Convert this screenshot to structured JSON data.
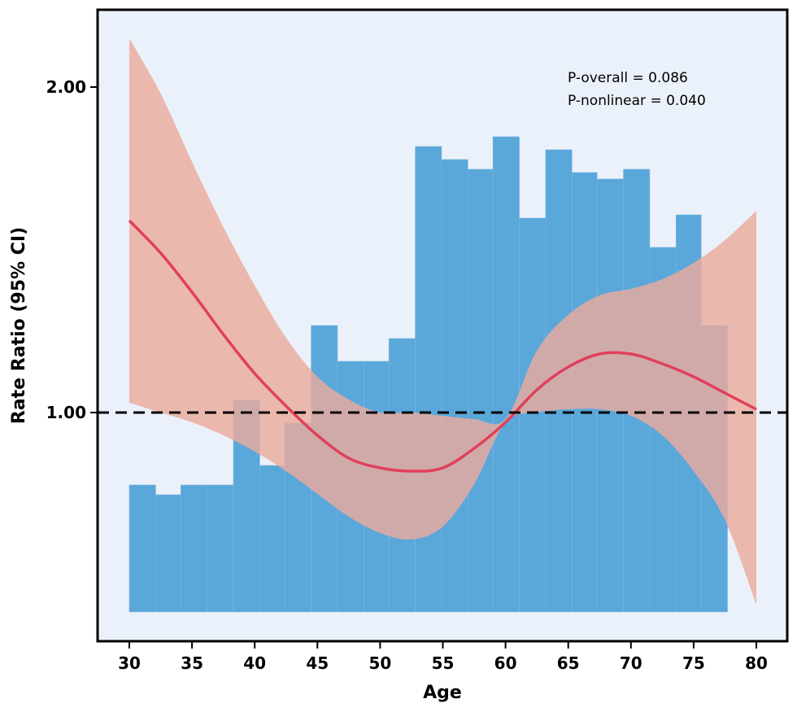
{
  "chart_data": {
    "type": "line",
    "xlabel": "Age",
    "ylabel": "Rate Ratio (95% CI)",
    "xlim": [
      27.5,
      82.5
    ],
    "x_ticks": [
      "30",
      "35",
      "40",
      "45",
      "50",
      "55",
      "60",
      "65",
      "70",
      "75",
      "80"
    ],
    "y_ticks": [
      "1.00",
      "2.00"
    ],
    "annotations": [
      "P-overall = 0.086",
      "P-nonlinear = 0.040"
    ],
    "reference_line": 1.0,
    "background_color": "#ebf1fa",
    "histogram": {
      "color": "#5aa7da",
      "bins": [
        {
          "start": 30.0,
          "end": 32.1,
          "height": 0.39
        },
        {
          "start": 32.1,
          "end": 34.1,
          "height": 0.36
        },
        {
          "start": 34.1,
          "end": 36.2,
          "height": 0.39
        },
        {
          "start": 36.2,
          "end": 38.3,
          "height": 0.39
        },
        {
          "start": 38.3,
          "end": 40.4,
          "height": 0.65
        },
        {
          "start": 40.4,
          "end": 42.4,
          "height": 0.45
        },
        {
          "start": 42.4,
          "end": 44.5,
          "height": 0.58
        },
        {
          "start": 44.5,
          "end": 46.6,
          "height": 0.88
        },
        {
          "start": 46.6,
          "end": 48.7,
          "height": 0.77
        },
        {
          "start": 48.7,
          "end": 50.7,
          "height": 0.77
        },
        {
          "start": 50.7,
          "end": 52.8,
          "height": 0.84
        },
        {
          "start": 52.8,
          "end": 54.9,
          "height": 1.43
        },
        {
          "start": 54.9,
          "end": 57.0,
          "height": 1.39
        },
        {
          "start": 57.0,
          "end": 59.0,
          "height": 1.36
        },
        {
          "start": 59.0,
          "end": 61.1,
          "height": 1.46
        },
        {
          "start": 61.1,
          "end": 63.2,
          "height": 1.21
        },
        {
          "start": 63.2,
          "end": 65.3,
          "height": 1.42
        },
        {
          "start": 65.3,
          "end": 67.3,
          "height": 1.35
        },
        {
          "start": 67.3,
          "end": 69.4,
          "height": 1.33
        },
        {
          "start": 69.4,
          "end": 71.5,
          "height": 1.36
        },
        {
          "start": 71.5,
          "end": 73.6,
          "height": 1.12
        },
        {
          "start": 73.6,
          "end": 75.6,
          "height": 1.22
        },
        {
          "start": 75.6,
          "end": 77.7,
          "height": 0.88
        }
      ],
      "baseline": 0.0
    },
    "series": [
      {
        "color": "#e0405a",
        "ci_color": "#eaab9e",
        "x": [
          30,
          32.5,
          35,
          37.5,
          40,
          42.5,
          45,
          47.5,
          50,
          52.5,
          55,
          57.5,
          60,
          62.5,
          65,
          67.5,
          70,
          72.5,
          75,
          77.5,
          80
        ],
        "y": [
          1.59,
          1.49,
          1.37,
          1.24,
          1.12,
          1.02,
          0.93,
          0.86,
          0.83,
          0.82,
          0.83,
          0.89,
          0.97,
          1.07,
          1.14,
          1.18,
          1.18,
          1.15,
          1.11,
          1.06,
          1.01
        ],
        "lower": [
          1.03,
          1.0,
          0.97,
          0.93,
          0.88,
          0.82,
          0.75,
          0.68,
          0.63,
          0.61,
          0.65,
          0.78,
          0.97,
          1.0,
          1.01,
          1.01,
          0.99,
          0.93,
          0.82,
          0.67,
          0.41
        ],
        "upper": [
          2.15,
          1.98,
          1.77,
          1.57,
          1.39,
          1.23,
          1.11,
          1.04,
          1.0,
          1.0,
          0.99,
          0.98,
          0.98,
          1.19,
          1.3,
          1.36,
          1.38,
          1.41,
          1.46,
          1.53,
          1.62
        ]
      }
    ]
  }
}
